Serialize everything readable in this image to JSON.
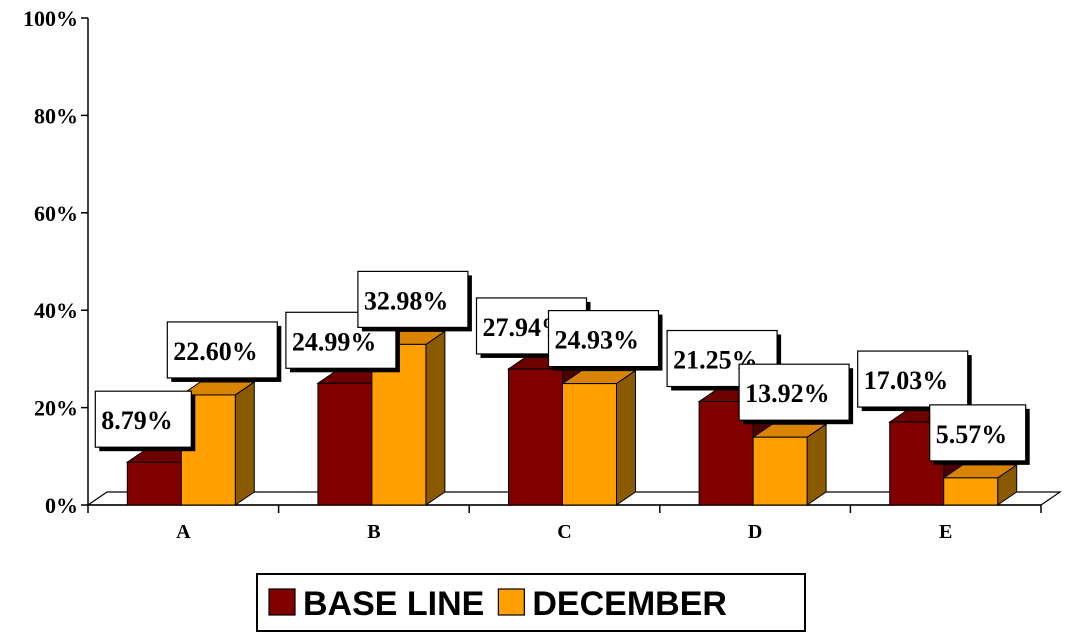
{
  "chart_data": {
    "type": "bar",
    "categories": [
      "A",
      "B",
      "C",
      "D",
      "E"
    ],
    "series": [
      {
        "name": "BASE LINE",
        "values": [
          8.79,
          24.99,
          27.94,
          21.25,
          17.03
        ],
        "labels": [
          "8.79%",
          "24.99%",
          "27.94%",
          "21.25%",
          "17.03%"
        ]
      },
      {
        "name": "DECEMBER",
        "values": [
          22.6,
          32.98,
          24.93,
          13.92,
          5.57
        ],
        "labels": [
          "22.60%",
          "32.98%",
          "24.93%",
          "13.92%",
          "5.57%"
        ]
      }
    ],
    "yticks": [
      "0%",
      "20%",
      "40%",
      "60%",
      "80%",
      "100%"
    ],
    "ylim": [
      0,
      100
    ],
    "title": "",
    "xlabel": "",
    "ylabel": "",
    "grid": false,
    "legend_position": "bottom",
    "three_d": true,
    "colors": {
      "BASE LINE": {
        "front": "#800000",
        "side": "#4a0000",
        "top": "#6e0000"
      },
      "DECEMBER": {
        "front": "#ff9f00",
        "side": "#8a5a00",
        "top": "#d98400"
      }
    }
  }
}
